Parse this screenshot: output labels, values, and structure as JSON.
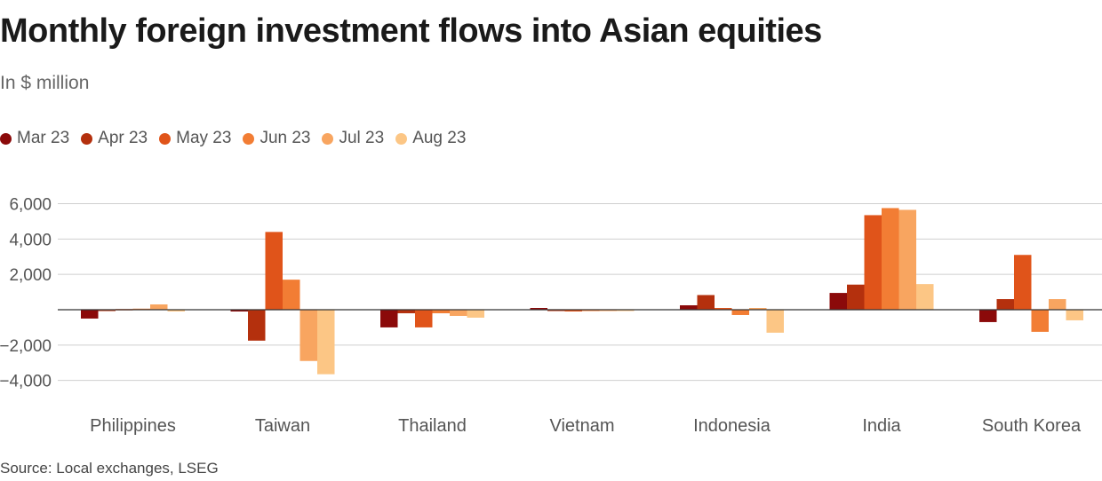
{
  "header": {
    "title": "Monthly foreign investment flows into Asian equities",
    "subtitle": "In $ million"
  },
  "footer": {
    "source": "Source: Local exchanges, LSEG"
  },
  "chart_data": {
    "type": "bar",
    "title": "Monthly foreign investment flows into Asian equities",
    "subtitle": "In $ million",
    "categories": [
      "Philippines",
      "Taiwan",
      "Thailand",
      "Vietnam",
      "Indonesia",
      "India",
      "South Korea"
    ],
    "ylim": [
      -4500,
      6500
    ],
    "yticks": [
      6000,
      4000,
      2000,
      -2000,
      -4000
    ],
    "ytick_labels": [
      "6,000",
      "4,000",
      "2,000",
      "−2,000",
      "−4,000"
    ],
    "grid": true,
    "legend_position": "top-left",
    "series": [
      {
        "name": "Mar 23",
        "color": "#8b0a0a",
        "values": [
          -500,
          -100,
          -1000,
          100,
          250,
          950,
          -700
        ]
      },
      {
        "name": "Apr 23",
        "color": "#b4300d",
        "values": [
          -60,
          -1750,
          -200,
          -50,
          830,
          1420,
          600
        ]
      },
      {
        "name": "May 23",
        "color": "#e0541a",
        "values": [
          40,
          4400,
          -1000,
          -100,
          100,
          5350,
          3100
        ]
      },
      {
        "name": "Jun 23",
        "color": "#f27d34",
        "values": [
          60,
          1700,
          -200,
          -30,
          -300,
          5750,
          -1250
        ]
      },
      {
        "name": "Jul 23",
        "color": "#f8a560",
        "values": [
          300,
          -2900,
          -350,
          -30,
          100,
          5650,
          600
        ]
      },
      {
        "name": "Aug 23",
        "color": "#fcc685",
        "values": [
          -100,
          -3650,
          -450,
          -50,
          -1300,
          1450,
          -600
        ]
      }
    ]
  }
}
